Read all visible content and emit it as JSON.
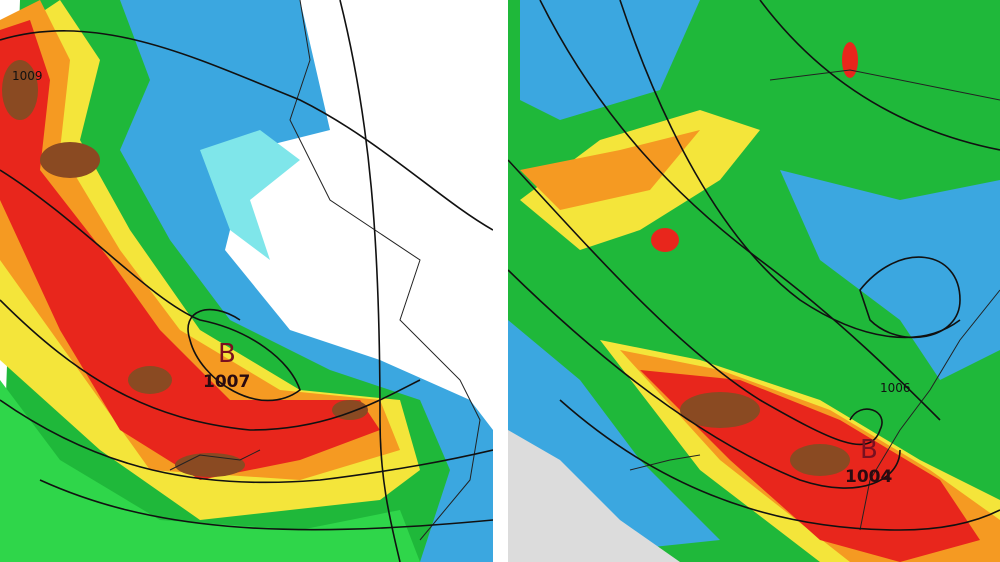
{
  "panels": [
    {
      "labels": [
        "1009",
        "B",
        "1007"
      ]
    },
    {
      "labels": [
        "1006",
        "B",
        "1004"
      ]
    }
  ]
}
